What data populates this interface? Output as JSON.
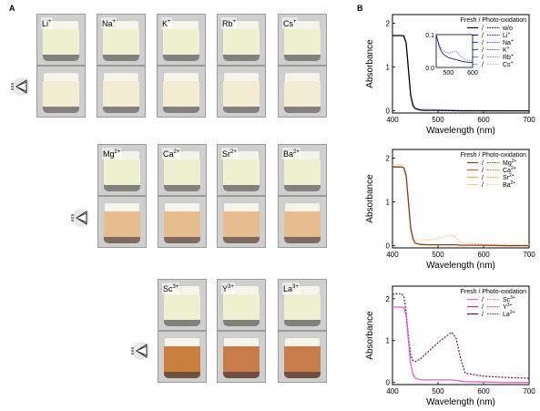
{
  "panel_a": {
    "letter": "A",
    "row1": [
      {
        "label": "Li",
        "sup": "+"
      },
      {
        "label": "Na",
        "sup": "+"
      },
      {
        "label": "K",
        "sup": "+"
      },
      {
        "label": "Rb",
        "sup": "+"
      },
      {
        "label": "Cs",
        "sup": "+"
      }
    ],
    "row2": [
      {
        "label": "Mg",
        "sup": "2+"
      },
      {
        "label": "Ca",
        "sup": "2+"
      },
      {
        "label": "Sr",
        "sup": "2+"
      },
      {
        "label": "Ba",
        "sup": "2+"
      }
    ],
    "row3": [
      {
        "label": "Sc",
        "sup": "3+"
      },
      {
        "label": "Y",
        "sup": "3+"
      },
      {
        "label": "La",
        "sup": "3+"
      }
    ],
    "colors": {
      "fresh": "#eef0cf",
      "photo_row1": "#f2ecd2",
      "photo_row2": "#e6bd8e",
      "photo_row3_a": "#c9803c",
      "photo_row3_b": "#c77c4a"
    }
  },
  "panel_b": {
    "letter": "B"
  },
  "chart_data": [
    {
      "type": "line",
      "xlabel": "Wavelength (nm)",
      "ylabel": "Absorbance",
      "xlim": [
        400,
        700
      ],
      "ylim": [
        -0.05,
        2.2
      ],
      "xticks": [
        400,
        500,
        600,
        700
      ],
      "yticks": [
        0,
        1,
        2
      ],
      "legend_title": "Fresh / Photo-oxidation",
      "legend_sep": "/",
      "legend_items": [
        {
          "label": "w/o",
          "sup": "",
          "color": "#000000"
        },
        {
          "label": "Li",
          "sup": "+",
          "color": "#1a1aa8"
        },
        {
          "label": "Na",
          "sup": "+",
          "color": "#2a4fd0"
        },
        {
          "label": "K",
          "sup": "+",
          "color": "#3a64c4"
        },
        {
          "label": "Rb",
          "sup": "+",
          "color": "#6e84d8"
        },
        {
          "label": "Cs",
          "sup": "+",
          "color": "#9fb4ea"
        }
      ],
      "x": [
        400,
        410,
        420,
        425,
        430,
        435,
        440,
        445,
        450,
        460,
        470,
        480,
        500,
        550,
        600,
        650,
        700
      ],
      "fresh_y": [
        1.72,
        1.72,
        1.72,
        1.71,
        1.55,
        0.95,
        0.35,
        0.12,
        0.05,
        0.02,
        0.01,
        0.01,
        0.01,
        0.0,
        0.0,
        0.0,
        0.0
      ],
      "photo_y": [
        1.72,
        1.72,
        1.72,
        1.71,
        1.55,
        0.95,
        0.36,
        0.14,
        0.07,
        0.04,
        0.04,
        0.04,
        0.03,
        0.02,
        0.01,
        0.0,
        0.0
      ],
      "inset": {
        "xlim": [
          450,
          600
        ],
        "ylim": [
          0,
          0.1
        ],
        "xticks": [
          500,
          600
        ],
        "yticks": [
          0.0,
          0.1
        ],
        "x": [
          450,
          460,
          470,
          480,
          490,
          500,
          510,
          520,
          530,
          540,
          550,
          560,
          570,
          580,
          590,
          600
        ],
        "fresh_y": [
          0.1,
          0.07,
          0.05,
          0.04,
          0.035,
          0.03,
          0.028,
          0.026,
          0.024,
          0.022,
          0.02,
          0.018,
          0.017,
          0.016,
          0.015,
          0.015
        ],
        "photo_y": [
          0.1,
          0.075,
          0.058,
          0.05,
          0.046,
          0.044,
          0.045,
          0.048,
          0.05,
          0.045,
          0.035,
          0.028,
          0.024,
          0.022,
          0.02,
          0.02
        ]
      }
    },
    {
      "type": "line",
      "xlabel": "Wavelength (nm)",
      "ylabel": "Absorbance",
      "xlim": [
        400,
        700
      ],
      "ylim": [
        -0.05,
        2.2
      ],
      "xticks": [
        400,
        500,
        600,
        700
      ],
      "yticks": [
        0,
        1,
        2
      ],
      "legend_title": "Fresh / Photo-oxidation",
      "legend_sep": "/",
      "legend_items": [
        {
          "label": "Mg",
          "sup": "2+",
          "color": "#8a3c10"
        },
        {
          "label": "Ca",
          "sup": "2+",
          "color": "#d36a1a"
        },
        {
          "label": "Sr",
          "sup": "2+",
          "color": "#f0a23c"
        },
        {
          "label": "Ba",
          "sup": "2+",
          "color": "#f3c88a"
        }
      ],
      "x": [
        400,
        410,
        420,
        425,
        430,
        435,
        440,
        445,
        450,
        460,
        480,
        500,
        520,
        530,
        540,
        550,
        600,
        650,
        700
      ],
      "fresh_y": [
        1.8,
        1.8,
        1.8,
        1.78,
        1.6,
        1.0,
        0.4,
        0.15,
        0.06,
        0.03,
        0.02,
        0.02,
        0.02,
        0.02,
        0.02,
        0.01,
        0.01,
        0.0,
        0.0
      ],
      "photo_y": [
        1.85,
        1.85,
        1.85,
        1.83,
        1.65,
        1.05,
        0.45,
        0.2,
        0.13,
        0.12,
        0.13,
        0.16,
        0.22,
        0.24,
        0.18,
        0.07,
        0.03,
        0.02,
        0.02
      ]
    },
    {
      "type": "line",
      "xlabel": "Wavelength (nm)",
      "ylabel": "Absorbance",
      "xlim": [
        400,
        700
      ],
      "ylim": [
        -0.05,
        2.3
      ],
      "xticks": [
        400,
        500,
        600,
        700
      ],
      "yticks": [
        0,
        1,
        2
      ],
      "legend_title": "Fresh / Photo-oxidation",
      "legend_sep": "/",
      "legend_items": [
        {
          "label": "Sc",
          "sup": "3+",
          "color": "#e060d0"
        },
        {
          "label": "Y",
          "sup": "3+",
          "color": "#c0306a"
        },
        {
          "label": "La",
          "sup": "3+",
          "color": "#7a1030"
        }
      ],
      "x": [
        400,
        410,
        420,
        425,
        430,
        435,
        440,
        445,
        450,
        460,
        470,
        480,
        500,
        520,
        530,
        540,
        550,
        560,
        600,
        650,
        700
      ],
      "fresh_y": [
        1.8,
        1.8,
        1.8,
        1.78,
        1.6,
        1.0,
        0.45,
        0.2,
        0.1,
        0.07,
        0.06,
        0.06,
        0.06,
        0.06,
        0.06,
        0.05,
        0.03,
        0.02,
        0.01,
        0.0,
        0.0
      ],
      "photo_y": [
        2.1,
        2.12,
        2.12,
        2.05,
        1.7,
        1.1,
        0.65,
        0.52,
        0.5,
        0.55,
        0.65,
        0.75,
        0.95,
        1.12,
        1.2,
        1.05,
        0.55,
        0.22,
        0.15,
        0.12,
        0.1
      ]
    }
  ]
}
